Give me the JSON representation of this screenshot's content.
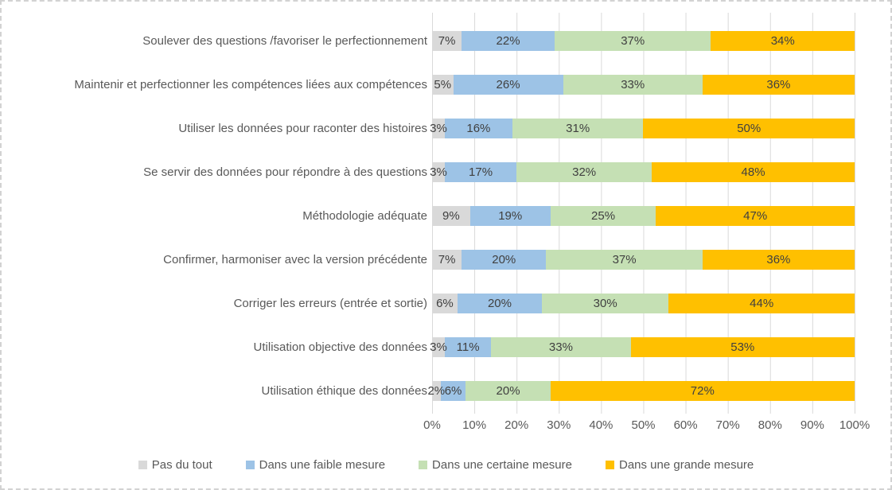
{
  "chart_data": {
    "type": "bar",
    "orientation": "horizontal",
    "stacked": true,
    "title": "",
    "xlabel": "",
    "ylabel": "",
    "xlim": [
      0,
      100
    ],
    "grid": true,
    "legend_position": "bottom",
    "data_label_format": "percent",
    "x_ticks": [
      "0%",
      "10%",
      "20%",
      "30%",
      "40%",
      "50%",
      "60%",
      "70%",
      "80%",
      "90%",
      "100%"
    ],
    "categories": [
      "Soulever des questions /favoriser le perfectionnement",
      "Maintenir et perfectionner les compétences liées aux compétences",
      "Utiliser les données pour raconter des histoires",
      "Se servir des données pour répondre à des questions",
      "Méthodologie adéquate",
      "Confirmer, harmoniser avec la version précédente",
      "Corriger les erreurs (entrée et sortie)",
      "Utilisation objective des données",
      "Utilisation éthique des données"
    ],
    "series": [
      {
        "name": "Pas du tout",
        "color": "#d9d9d9",
        "values": [
          7,
          5,
          3,
          3,
          9,
          7,
          6,
          3,
          2
        ]
      },
      {
        "name": "Dans une faible mesure",
        "color": "#9dc3e6",
        "values": [
          22,
          26,
          16,
          17,
          19,
          20,
          20,
          11,
          6
        ]
      },
      {
        "name": "Dans une certaine mesure",
        "color": "#c5e0b4",
        "values": [
          37,
          33,
          31,
          32,
          25,
          37,
          30,
          33,
          20
        ]
      },
      {
        "name": "Dans une grande mesure",
        "color": "#ffc000",
        "values": [
          34,
          36,
          50,
          48,
          47,
          36,
          44,
          53,
          72
        ]
      }
    ],
    "colors": {
      "gridline": "#d9d9d9",
      "axis_text": "#595959",
      "category_text": "#595959",
      "data_label_text": "#404040",
      "frame_border": "#d2d2d2"
    }
  }
}
